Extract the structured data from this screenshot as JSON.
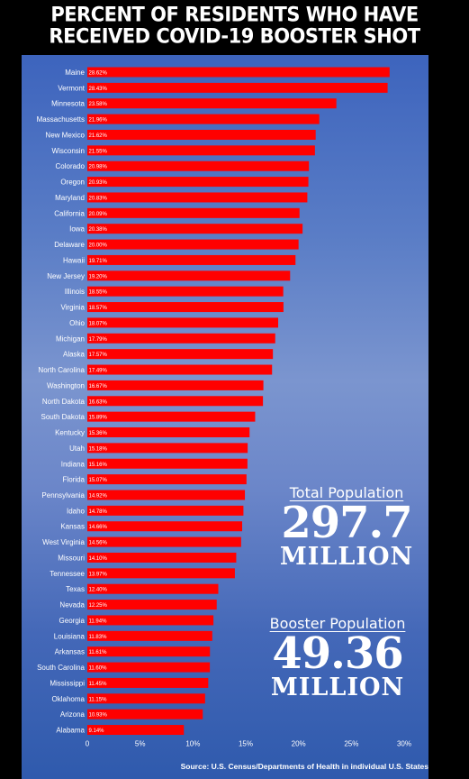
{
  "title_lines": [
    "PERCENT OF RESIDENTS WHO HAVE",
    "RECEIVED COVID-19 BOOSTER SHOT"
  ],
  "total": {
    "label": "Total Population",
    "value": "297.7",
    "unit": "MILLION"
  },
  "booster": {
    "label": "Booster Population",
    "value": "49.36",
    "unit": "MILLION"
  },
  "source": "Source: U.S. Census/Departments of Health in individual U.S. States",
  "colors": {
    "bar": "#ff0000",
    "panel": "#5a7dc6"
  },
  "chart_data": {
    "type": "bar",
    "orientation": "horizontal",
    "title": "PERCENT OF RESIDENTS WHO HAVE RECEIVED COVID-19 BOOSTER SHOT",
    "xlim": [
      0,
      30
    ],
    "xticks": [
      "0",
      "5%",
      "10%",
      "15%",
      "20%",
      "25%",
      "30%"
    ],
    "grid": false,
    "categories": [
      "Maine",
      "Vermont",
      "Minnesota",
      "Massachusetts",
      "New Mexico",
      "Wisconsin",
      "Colorado",
      "Oregon",
      "Maryland",
      "California",
      "Iowa",
      "Delaware",
      "Hawaii",
      "New Jersey",
      "Illinois",
      "Virginia",
      "Ohio",
      "Michigan",
      "Alaska",
      "North Carolina",
      "Washington",
      "North Dakota",
      "South Dakota",
      "Kentucky",
      "Utah",
      "Indiana",
      "Florida",
      "Pennsylvania",
      "Idaho",
      "Kansas",
      "West Virginia",
      "Missouri",
      "Tennessee",
      "Texas",
      "Nevada",
      "Georgia",
      "Louisiana",
      "Arkansas",
      "South Carolina",
      "Mississippi",
      "Oklahoma",
      "Arizona",
      "Alabama"
    ],
    "values": [
      28.62,
      28.43,
      23.58,
      21.96,
      21.62,
      21.55,
      20.98,
      20.93,
      20.83,
      20.09,
      20.38,
      20.0,
      19.71,
      19.2,
      18.55,
      18.57,
      18.07,
      17.79,
      17.57,
      17.49,
      16.67,
      16.63,
      15.89,
      15.36,
      15.18,
      15.16,
      15.07,
      14.92,
      14.78,
      14.66,
      14.56,
      14.1,
      13.97,
      12.4,
      12.25,
      11.94,
      11.83,
      11.61,
      11.6,
      11.45,
      11.15,
      10.93,
      9.14
    ],
    "data_labels": [
      "28.62%",
      "28.43%",
      "23.58%",
      "21.96%",
      "21.62%",
      "21.55%",
      "20.98%",
      "20.93%",
      "20.83%",
      "20.09%",
      "20.38%",
      "20.00%",
      "19.71%",
      "19.20%",
      "18.55%",
      "18.57%",
      "18.07%",
      "17.79%",
      "17.57%",
      "17.49%",
      "16.67%",
      "16.63%",
      "15.89%",
      "15.36%",
      "15.18%",
      "15.16%",
      "15.07%",
      "14.92%",
      "14.78%",
      "14.66%",
      "14.56%",
      "14.10%",
      "13.97%",
      "12.40%",
      "12.25%",
      "11.94%",
      "11.83%",
      "11.61%",
      "11.60%",
      "11.45%",
      "11.15%",
      "10.93%",
      "9.14%"
    ]
  }
}
